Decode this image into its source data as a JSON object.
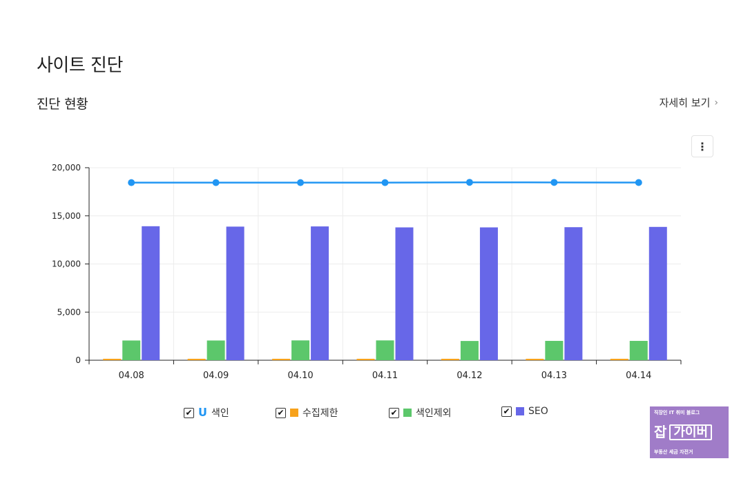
{
  "page": {
    "title": "사이트 진단"
  },
  "section": {
    "title": "진단 현황",
    "more_label": "자세히 보기",
    "menu_label": "⋮"
  },
  "colors": {
    "index": "#2196f3",
    "crawl_limit": "#f7a21b",
    "index_excluded": "#5cc76b",
    "seo": "#6767e8"
  },
  "chart_data": {
    "type": "bar",
    "categories": [
      "04.08",
      "04.09",
      "04.10",
      "04.11",
      "04.12",
      "04.13",
      "04.14"
    ],
    "ylim": [
      0,
      20000
    ],
    "yticks": [
      "0",
      "5,000",
      "10,000",
      "15,000",
      "20,000"
    ],
    "ytick_values": [
      0,
      5000,
      10000,
      15000,
      20000
    ],
    "grid": true,
    "legend_position": "bottom",
    "series": [
      {
        "name": "색인",
        "type": "line",
        "color": "#2196f3",
        "values": [
          18450,
          18450,
          18450,
          18450,
          18480,
          18470,
          18460
        ]
      },
      {
        "name": "수집제한",
        "type": "bar",
        "color": "#f7a21b",
        "values": [
          150,
          150,
          150,
          150,
          150,
          150,
          150
        ]
      },
      {
        "name": "색인제외",
        "type": "bar",
        "color": "#5cc76b",
        "values": [
          2050,
          2050,
          2060,
          2060,
          2000,
          2010,
          2010
        ]
      },
      {
        "name": "SEO",
        "type": "bar",
        "color": "#6767e8",
        "values": [
          13920,
          13880,
          13900,
          13800,
          13800,
          13820,
          13850
        ]
      }
    ]
  },
  "legend": [
    {
      "label": "색인",
      "icon": "line-wave-icon",
      "checked": true
    },
    {
      "label": "수집제한",
      "icon": "orange-square",
      "checked": true
    },
    {
      "label": "색인제외",
      "icon": "green-square",
      "checked": true
    },
    {
      "label": "SEO",
      "icon": "blue-square",
      "checked": true
    }
  ],
  "badge": {
    "top": "직장인 IT 취미 블로그",
    "big": "잡",
    "box": "가이버",
    "bottom": "부동산 세금 자전거"
  }
}
